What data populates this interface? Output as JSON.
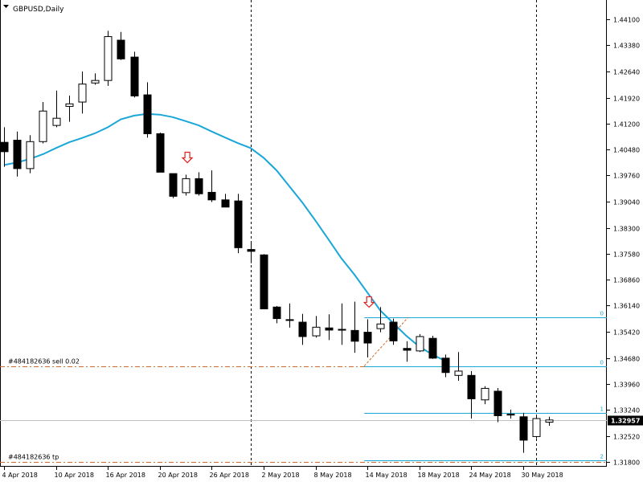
{
  "chart_data": {
    "type": "candlestick",
    "title": "GBPUSD,Daily",
    "y_axis": {
      "ticks": [
        "1.44100",
        "1.43380",
        "1.42640",
        "1.41920",
        "1.41200",
        "1.40480",
        "1.39760",
        "1.39040",
        "1.38300",
        "1.37580",
        "1.36860",
        "1.36140",
        "1.35420",
        "1.34680",
        "1.33960",
        "1.33240",
        "1.32520",
        "1.31800"
      ],
      "range": [
        1.3175,
        1.4428
      ]
    },
    "x_axis": {
      "tick_labels": [
        {
          "label": "4 Apr 2018",
          "index": 0
        },
        {
          "label": "10 Apr 2018",
          "index": 4
        },
        {
          "label": "16 Apr 2018",
          "index": 8
        },
        {
          "label": "20 Apr 2018",
          "index": 12
        },
        {
          "label": "26 Apr 2018",
          "index": 16
        },
        {
          "label": "2 May 2018",
          "index": 20
        },
        {
          "label": "8 May 2018",
          "index": 24
        },
        {
          "label": "14 May 2018",
          "index": 28
        },
        {
          "label": "18 May 2018",
          "index": 32
        },
        {
          "label": "24 May 2018",
          "index": 36
        },
        {
          "label": "30 May 2018",
          "index": 40
        }
      ]
    },
    "candles": [
      {
        "o": 1.4068,
        "h": 1.411,
        "l": 1.4,
        "c": 1.4042
      },
      {
        "o": 1.4074,
        "h": 1.4098,
        "l": 1.3973,
        "c": 1.3995
      },
      {
        "o": 1.3995,
        "h": 1.4088,
        "l": 1.3982,
        "c": 1.407
      },
      {
        "o": 1.407,
        "h": 1.418,
        "l": 1.4065,
        "c": 1.4155
      },
      {
        "o": 1.4115,
        "h": 1.4212,
        "l": 1.411,
        "c": 1.4135
      },
      {
        "o": 1.4168,
        "h": 1.4198,
        "l": 1.4125,
        "c": 1.4175
      },
      {
        "o": 1.418,
        "h": 1.4265,
        "l": 1.4148,
        "c": 1.423
      },
      {
        "o": 1.4233,
        "h": 1.426,
        "l": 1.4228,
        "c": 1.424
      },
      {
        "o": 1.424,
        "h": 1.4378,
        "l": 1.4225,
        "c": 1.4362
      },
      {
        "o": 1.4352,
        "h": 1.4375,
        "l": 1.4297,
        "c": 1.43
      },
      {
        "o": 1.4305,
        "h": 1.432,
        "l": 1.4193,
        "c": 1.4197
      },
      {
        "o": 1.42,
        "h": 1.4235,
        "l": 1.4081,
        "c": 1.4092
      },
      {
        "o": 1.4092,
        "h": 1.4095,
        "l": 1.3985,
        "c": 1.3985
      },
      {
        "o": 1.3981,
        "h": 1.3981,
        "l": 1.3913,
        "c": 1.3918
      },
      {
        "o": 1.3928,
        "h": 1.3978,
        "l": 1.392,
        "c": 1.3967
      },
      {
        "o": 1.3967,
        "h": 1.3985,
        "l": 1.392,
        "c": 1.3925
      },
      {
        "o": 1.3929,
        "h": 1.399,
        "l": 1.3902,
        "c": 1.3908
      },
      {
        "o": 1.3908,
        "h": 1.3925,
        "l": 1.3888,
        "c": 1.3888
      },
      {
        "o": 1.3905,
        "h": 1.3925,
        "l": 1.376,
        "c": 1.3775
      },
      {
        "o": 1.377,
        "h": 1.3787,
        "l": 1.3732,
        "c": 1.3765
      },
      {
        "o": 1.3755,
        "h": 1.3757,
        "l": 1.3605,
        "c": 1.3605
      },
      {
        "o": 1.361,
        "h": 1.3613,
        "l": 1.3565,
        "c": 1.3578
      },
      {
        "o": 1.3575,
        "h": 1.362,
        "l": 1.3553,
        "c": 1.3573
      },
      {
        "o": 1.3568,
        "h": 1.3591,
        "l": 1.3505,
        "c": 1.3528
      },
      {
        "o": 1.353,
        "h": 1.3585,
        "l": 1.3525,
        "c": 1.3554
      },
      {
        "o": 1.3552,
        "h": 1.359,
        "l": 1.3518,
        "c": 1.3546
      },
      {
        "o": 1.3548,
        "h": 1.362,
        "l": 1.3505,
        "c": 1.3546
      },
      {
        "o": 1.3545,
        "h": 1.3625,
        "l": 1.3483,
        "c": 1.3515
      },
      {
        "o": 1.354,
        "h": 1.3576,
        "l": 1.347,
        "c": 1.351
      },
      {
        "o": 1.355,
        "h": 1.361,
        "l": 1.354,
        "c": 1.3563
      },
      {
        "o": 1.3568,
        "h": 1.3578,
        "l": 1.3505,
        "c": 1.3516
      },
      {
        "o": 1.3495,
        "h": 1.3515,
        "l": 1.3458,
        "c": 1.349
      },
      {
        "o": 1.3488,
        "h": 1.3535,
        "l": 1.3485,
        "c": 1.3528
      },
      {
        "o": 1.3523,
        "h": 1.353,
        "l": 1.3466,
        "c": 1.3468
      },
      {
        "o": 1.3468,
        "h": 1.3478,
        "l": 1.3415,
        "c": 1.3428
      },
      {
        "o": 1.342,
        "h": 1.3485,
        "l": 1.3405,
        "c": 1.3432
      },
      {
        "o": 1.342,
        "h": 1.3432,
        "l": 1.33,
        "c": 1.3355
      },
      {
        "o": 1.3352,
        "h": 1.339,
        "l": 1.334,
        "c": 1.3384
      },
      {
        "o": 1.3376,
        "h": 1.3385,
        "l": 1.329,
        "c": 1.3308
      },
      {
        "o": 1.3312,
        "h": 1.3325,
        "l": 1.33,
        "c": 1.3312
      },
      {
        "o": 1.3305,
        "h": 1.3316,
        "l": 1.3205,
        "c": 1.324
      },
      {
        "o": 1.325,
        "h": 1.331,
        "l": 1.3245,
        "c": 1.33
      },
      {
        "o": 1.329,
        "h": 1.3305,
        "l": 1.328,
        "c": 1.3296
      }
    ],
    "moving_average": [
      1.4005,
      1.4012,
      1.4022,
      1.4035,
      1.4052,
      1.4068,
      1.408,
      1.4093,
      1.411,
      1.4132,
      1.4142,
      1.4147,
      1.4145,
      1.4138,
      1.4127,
      1.4115,
      1.4098,
      1.4082,
      1.4066,
      1.4052,
      1.4025,
      1.399,
      1.3945,
      1.39,
      1.385,
      1.3798,
      1.3745,
      1.37,
      1.365,
      1.36,
      1.3565,
      1.353,
      1.35,
      1.3478,
      1.346
    ],
    "current_price": "1.32957",
    "current_price_value": 1.32957,
    "sell_order": {
      "label": "#484182636 sell 0.02",
      "price": 1.3446
    },
    "take_profit": {
      "label": "#484182636 tp",
      "price": 1.318
    },
    "fib_levels": [
      {
        "label": "0",
        "price": 1.3581
      },
      {
        "label": "0",
        "price": 1.3446
      },
      {
        "label": "1",
        "price": 1.3315
      },
      {
        "label": "2",
        "price": 1.3184
      }
    ],
    "arrows": [
      {
        "index": 14
      },
      {
        "index": 28
      }
    ],
    "period_separators": [
      19,
      41
    ],
    "colors": {
      "bull_fill": "#ffffff",
      "bear_fill": "#000000",
      "candle_stroke": "#000000",
      "ma": "#1aa7d8",
      "fib": "#1aa7d8",
      "order_line": "#d2692d",
      "arrow": "#e02020",
      "price_tag": "#000000",
      "grid": "#000000"
    }
  }
}
